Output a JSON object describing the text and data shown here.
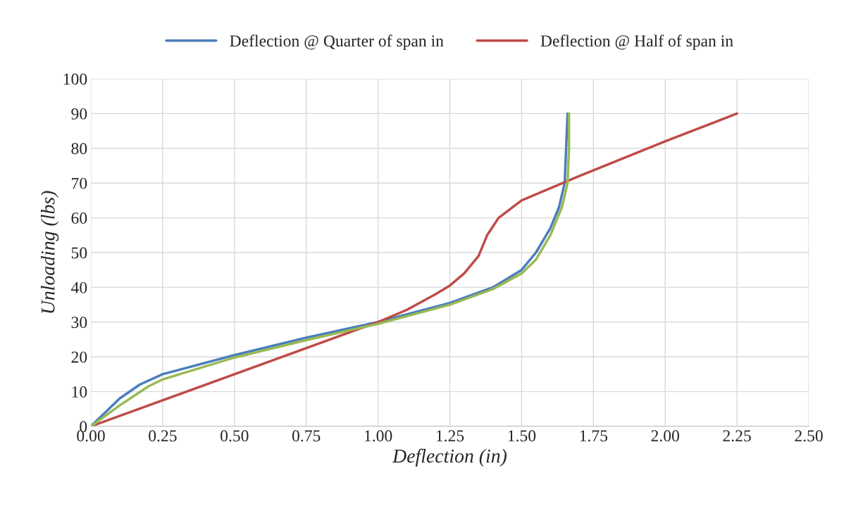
{
  "chart_data": {
    "type": "line",
    "xlabel": "Deflection (in)",
    "ylabel": "Unloading (lbs)",
    "xlim": [
      0,
      2.5
    ],
    "xticks": [
      {
        "value": 0,
        "label": "0.00"
      },
      {
        "value": 0.25,
        "label": "0.25"
      },
      {
        "value": 0.5,
        "label": "0.50"
      },
      {
        "value": 0.75,
        "label": "0.75"
      },
      {
        "value": 1,
        "label": "1.00"
      },
      {
        "value": 1.25,
        "label": "1.25"
      },
      {
        "value": 1.5,
        "label": "1.50"
      },
      {
        "value": 1.75,
        "label": "1.75"
      },
      {
        "value": 2,
        "label": "2.00"
      },
      {
        "value": 2.25,
        "label": "2.25"
      },
      {
        "value": 2.5,
        "label": "2.50"
      }
    ],
    "ylim": [
      0,
      100
    ],
    "yticks": [
      0,
      10,
      20,
      30,
      40,
      50,
      60,
      70,
      80,
      90,
      100
    ],
    "grid": true,
    "legend": "top",
    "marker": "none",
    "line_style": "solid",
    "series": [
      {
        "name": "Deflection @ Quarter of span in",
        "color": "#4a7ebb",
        "x": [
          0,
          0.05,
          0.1,
          0.17,
          0.25,
          0.5,
          0.75,
          1.0,
          1.25,
          1.4,
          1.5,
          1.55,
          1.6,
          1.63,
          1.65,
          1.655,
          1.66
        ],
        "values": [
          0,
          4,
          8,
          12,
          15,
          20.5,
          25.5,
          30,
          35.5,
          40,
          45,
          50,
          57,
          63,
          70,
          80,
          90
        ]
      },
      {
        "name": "Deflection @ Half of span in",
        "color": "#be4b48",
        "x": [
          0,
          1.0,
          1.1,
          1.2,
          1.25,
          1.3,
          1.35,
          1.38,
          1.42,
          1.5,
          1.6,
          1.7,
          2.0,
          2.25
        ],
        "values": [
          0,
          30,
          33.5,
          38,
          40.5,
          44,
          49,
          55,
          60,
          65,
          68.5,
          72,
          82,
          90
        ]
      },
      {
        "color": "#98b954",
        "x": [
          0,
          0.1,
          0.2,
          0.25,
          0.5,
          0.75,
          1.0,
          1.25,
          1.4,
          1.5,
          1.55,
          1.6,
          1.64,
          1.66,
          1.665,
          1.665
        ],
        "values": [
          0,
          6,
          11.5,
          13.5,
          19.8,
          24.8,
          29.5,
          35,
          39.5,
          44,
          48,
          55,
          63,
          70,
          80,
          90
        ]
      }
    ]
  }
}
